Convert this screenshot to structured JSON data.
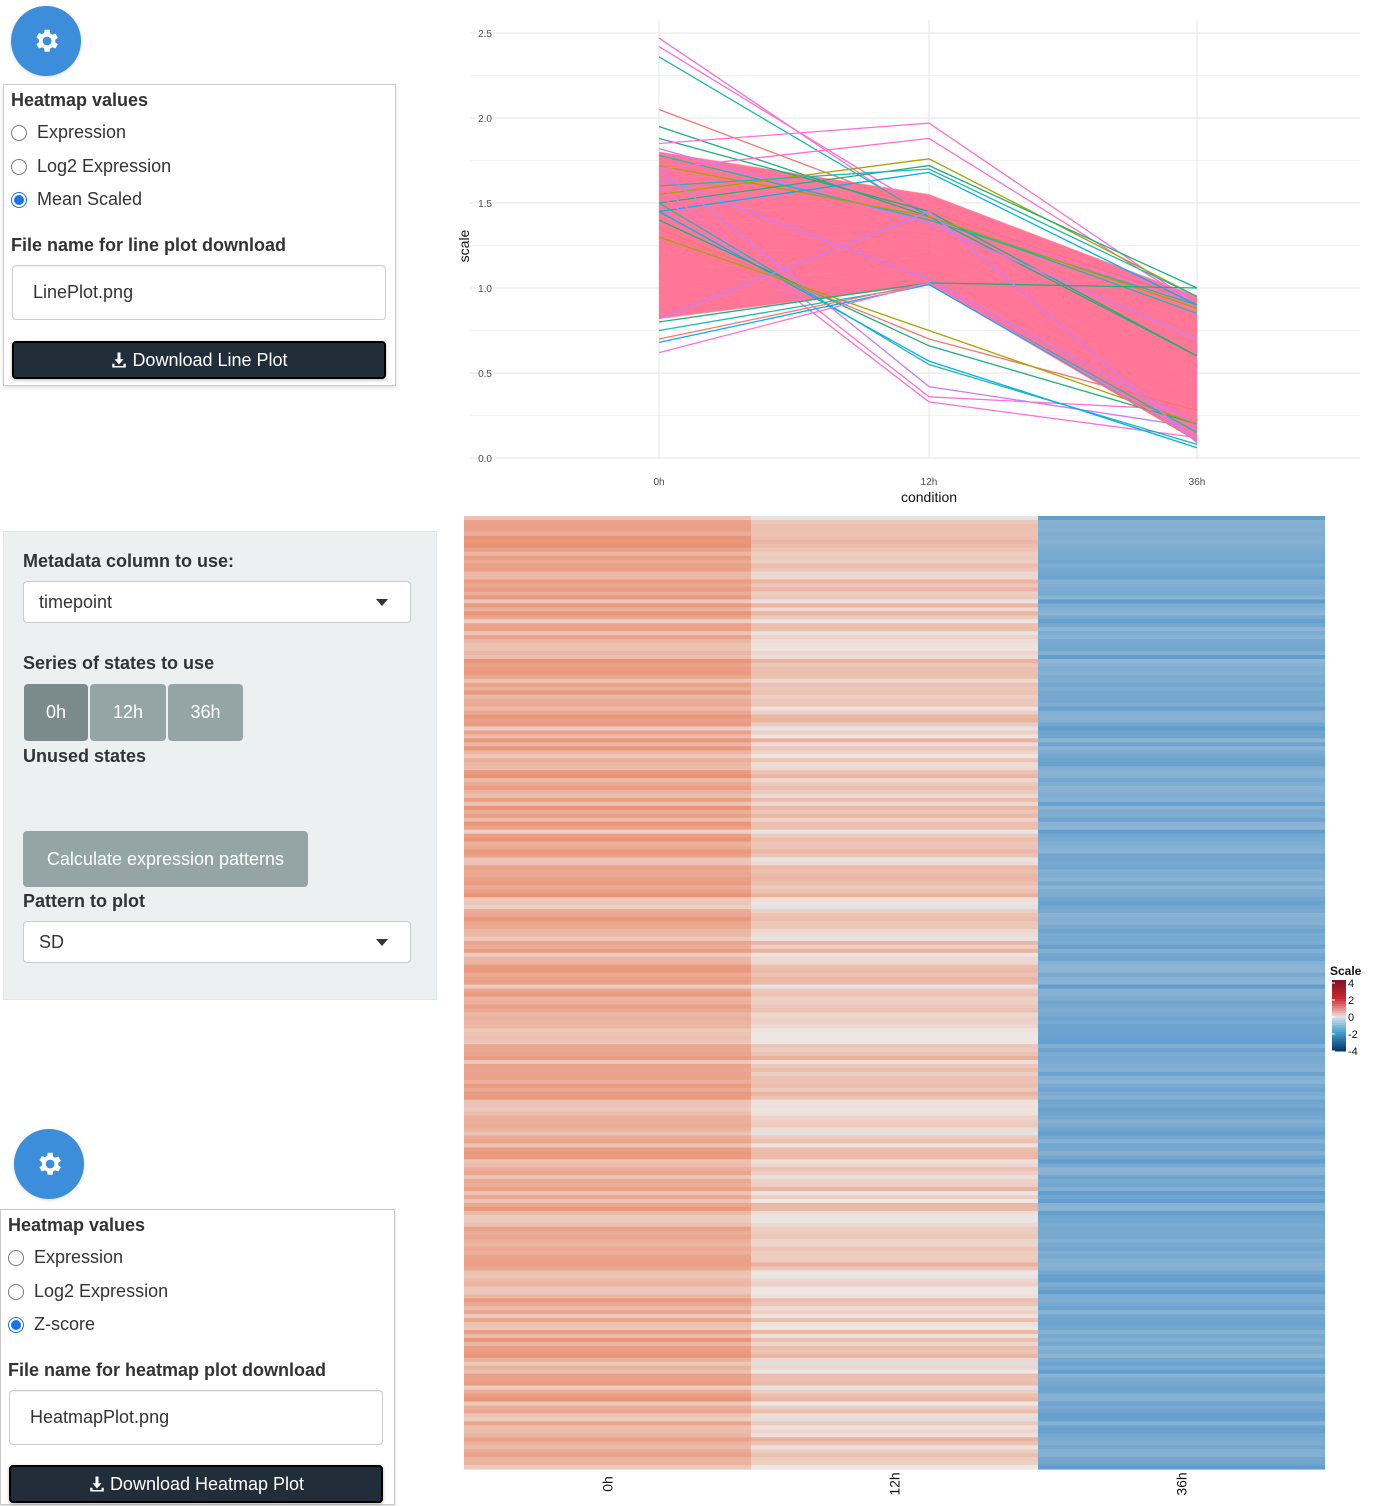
{
  "top_settings": {
    "gear_icon": "gear-icon",
    "heatmap_values_label": "Heatmap values",
    "options": [
      "Expression",
      "Log2 Expression",
      "Mean Scaled"
    ],
    "selected": "Mean Scaled",
    "filename_label": "File name for line plot download",
    "filename_value": "LinePlot.png",
    "download_label": "Download Line Plot"
  },
  "analysis_panel": {
    "metadata_label": "Metadata column to use:",
    "metadata_value": "timepoint",
    "series_label": "Series of states to use",
    "states": [
      "0h",
      "12h",
      "36h"
    ],
    "active_state": "0h",
    "unused_label": "Unused states",
    "calc_button": "Calculate expression patterns",
    "pattern_label": "Pattern to plot",
    "pattern_value": "SD"
  },
  "bottom_settings": {
    "gear_icon": "gear-icon",
    "heatmap_values_label": "Heatmap values",
    "options": [
      "Expression",
      "Log2 Expression",
      "Z-score"
    ],
    "selected": "Z-score",
    "filename_label": "File name for heatmap plot download",
    "filename_value": "HeatmapPlot.png",
    "download_label": "Download Heatmap Plot"
  },
  "colors": {
    "accent": "#3c8dda",
    "dark_button": "#222d3a",
    "state_button": "#95a5a6",
    "state_button_active": "#7b8a8b",
    "well": "#ecf0f1",
    "line_main": "#ff6f91"
  },
  "chart_data": [
    {
      "type": "line",
      "title": "",
      "xlabel": "condition",
      "ylabel": "scale",
      "categories": [
        "0h",
        "12h",
        "36h"
      ],
      "yticks": [
        "0.0",
        "0.5",
        "1.0",
        "1.5",
        "2.0",
        "2.5"
      ],
      "ylim": [
        0,
        2.5
      ],
      "grid": true,
      "band": {
        "name": "",
        "upper": [
          1.8,
          1.55,
          0.95
        ],
        "lower": [
          0.82,
          1.02,
          0.1
        ],
        "color": "#ff6f91"
      },
      "series": [
        {
          "values": [
            2.47,
            1.4,
            0.95
          ],
          "color": "#ff6fd2"
        },
        {
          "values": [
            2.42,
            1.45,
            0.9
          ],
          "color": "#ff6fd2"
        },
        {
          "values": [
            2.36,
            1.42,
            0.85
          ],
          "color": "#1fb7b0"
        },
        {
          "values": [
            2.05,
            1.45,
            0.92
          ],
          "color": "#f8766d"
        },
        {
          "values": [
            1.95,
            1.42,
            0.6
          ],
          "color": "#1fb07a"
        },
        {
          "values": [
            1.88,
            1.45,
            0.6
          ],
          "color": "#1fb07a"
        },
        {
          "values": [
            1.82,
            1.38,
            0.7
          ],
          "color": "#c77cff"
        },
        {
          "values": [
            1.78,
            1.4,
            0.9
          ],
          "color": "#1fb7b0"
        },
        {
          "values": [
            1.72,
            1.42,
            0.88
          ],
          "color": "#a3a500"
        },
        {
          "values": [
            1.65,
            1.05,
            0.2
          ],
          "color": "#c77cff"
        },
        {
          "values": [
            1.85,
            1.97,
            0.9
          ],
          "color": "#ff6fd2"
        },
        {
          "values": [
            1.7,
            1.88,
            0.9
          ],
          "color": "#ff6fd2"
        },
        {
          "values": [
            1.55,
            1.76,
            0.95
          ],
          "color": "#a3a500"
        },
        {
          "values": [
            1.5,
            1.72,
            1.0
          ],
          "color": "#1fb07a"
        },
        {
          "values": [
            1.6,
            1.7,
            0.95
          ],
          "color": "#1fb7b0"
        },
        {
          "values": [
            1.45,
            1.68,
            0.9
          ],
          "color": "#00b0f6"
        },
        {
          "values": [
            1.7,
            0.42,
            0.18
          ],
          "color": "#c77cff"
        },
        {
          "values": [
            1.6,
            0.36,
            0.28
          ],
          "color": "#ff6fd2"
        },
        {
          "values": [
            1.55,
            0.33,
            0.12
          ],
          "color": "#ff6fd2"
        },
        {
          "values": [
            1.5,
            0.55,
            0.08
          ],
          "color": "#1fb7b0"
        },
        {
          "values": [
            1.45,
            0.57,
            0.06
          ],
          "color": "#00b0f6"
        },
        {
          "values": [
            1.4,
            0.66,
            0.2
          ],
          "color": "#1fb07a"
        },
        {
          "values": [
            1.35,
            0.7,
            0.28
          ],
          "color": "#f8766d"
        },
        {
          "values": [
            1.3,
            0.75,
            0.2
          ],
          "color": "#a3a500"
        },
        {
          "values": [
            0.8,
            1.03,
            1.0
          ],
          "color": "#1fb07a"
        },
        {
          "values": [
            0.75,
            1.02,
            0.15
          ],
          "color": "#1fb7b0"
        },
        {
          "values": [
            0.7,
            1.03,
            0.1
          ],
          "color": "#f8766d"
        },
        {
          "values": [
            0.68,
            1.02,
            0.12
          ],
          "color": "#00b0f6"
        },
        {
          "values": [
            0.62,
            1.03,
            0.12
          ],
          "color": "#ff6fd2"
        },
        {
          "values": [
            0.82,
            1.45,
            0.09
          ],
          "color": "#c77cff"
        }
      ]
    },
    {
      "type": "heatmap",
      "title": "",
      "columns": [
        "0h",
        "12h",
        "36h"
      ],
      "legend_title": "Scale",
      "legend_ticks": [
        "4",
        "2",
        "0",
        "-2",
        "-4"
      ],
      "vlim": [
        -4,
        4
      ],
      "column_means": [
        1.3,
        0.55,
        -1.6
      ]
    }
  ]
}
